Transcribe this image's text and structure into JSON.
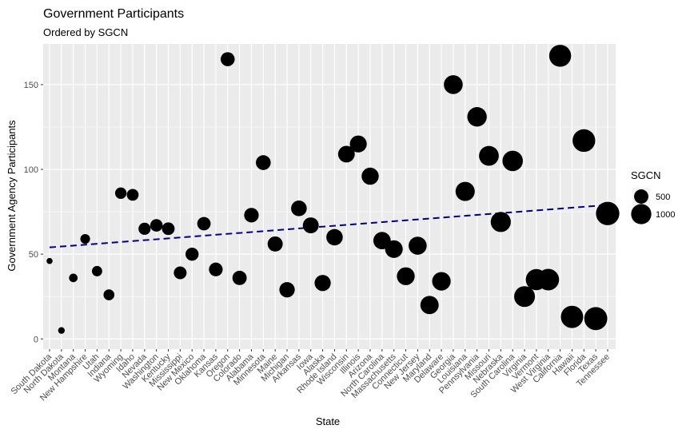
{
  "chart_data": {
    "type": "scatter",
    "title": "Government Participants",
    "subtitle": "Ordered by SGCN",
    "xlabel": "State",
    "ylabel": "Government Agency Participants",
    "ylim": [
      -6,
      174
    ],
    "yticks": [
      0,
      50,
      100,
      150
    ],
    "grid": true,
    "trend_line": {
      "style": "dashed",
      "color": "#000080",
      "start": 54,
      "end": 79
    },
    "point_color": "#000000",
    "panel_color": "#ebebeb",
    "categories": [
      "South Dakota",
      "North Dakota",
      "Montana",
      "New Hampshire",
      "Utah",
      "Indiana",
      "Wyoming",
      "Idaho",
      "Nevada",
      "Washington",
      "Kentucky",
      "Mississippi",
      "New Mexico",
      "Oklahoma",
      "Kansas",
      "Oregon",
      "Colorado",
      "Alabama",
      "Minnesota",
      "Maine",
      "Michigan",
      "Arkansas",
      "Iowa",
      "Alaska",
      "Rhode Island",
      "Wisconsin",
      "Illinois",
      "Arizona",
      "North Carolina",
      "Massachusetts",
      "Connecticut",
      "New Jersey",
      "Maryland",
      "Delaware",
      "Georgia",
      "Louisiana",
      "Pennsylvania",
      "Missouri",
      "Nebraska",
      "South Carolina",
      "Virginia",
      "Vermont",
      "West Virginia",
      "California",
      "Hawaii",
      "Florida",
      "Texas",
      "Tennessee"
    ],
    "values": [
      46,
      5,
      36,
      59,
      40,
      26,
      86,
      85,
      65,
      67,
      65,
      39,
      50,
      68,
      41,
      165,
      36,
      73,
      104,
      56,
      29,
      77,
      67,
      33,
      60,
      109,
      115,
      96,
      58,
      53,
      37,
      55,
      20,
      34,
      150,
      87,
      131,
      108,
      69,
      105,
      25,
      35,
      35,
      167,
      13,
      117,
      12,
      74
    ],
    "sgcn": [
      90,
      110,
      180,
      230,
      260,
      290,
      320,
      340,
      360,
      380,
      390,
      400,
      420,
      440,
      460,
      480,
      500,
      520,
      540,
      560,
      580,
      600,
      620,
      640,
      660,
      680,
      700,
      720,
      740,
      760,
      780,
      800,
      820,
      840,
      870,
      900,
      930,
      960,
      990,
      1020,
      1060,
      1100,
      1140,
      1180,
      1220,
      1260,
      1300,
      1340
    ],
    "legend": {
      "title": "SGCN",
      "entries": [
        {
          "label": "500",
          "value": 500
        },
        {
          "label": "1000",
          "value": 1000
        }
      ]
    }
  }
}
